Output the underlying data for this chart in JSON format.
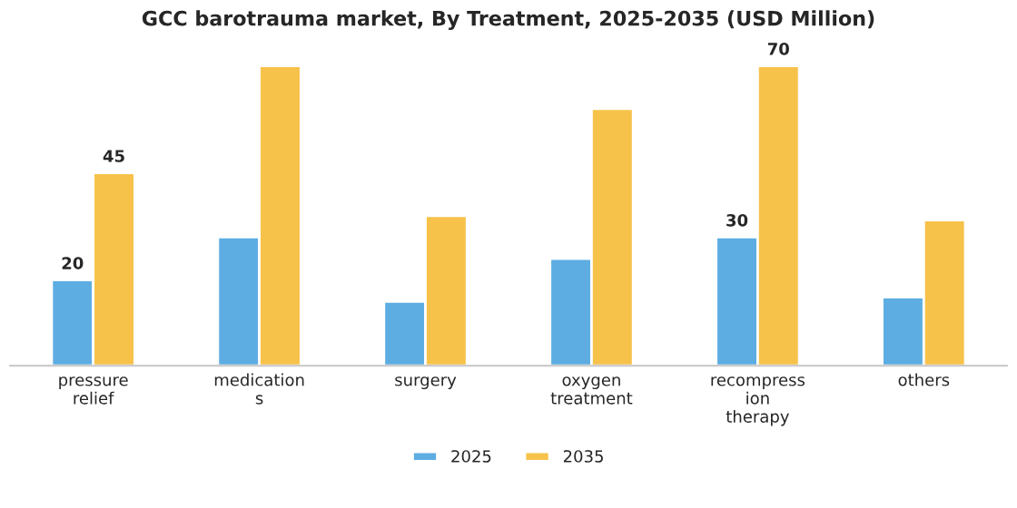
{
  "chart_data": {
    "type": "bar",
    "title": "GCC barotrauma market, By Treatment, 2025-2035 (USD Million)",
    "categories": [
      "pressure\nrelief",
      "medication\ns",
      "surgery",
      "oxygen\ntreatment",
      "recompress\nion\ntherapy",
      "others"
    ],
    "series": [
      {
        "name": "2025",
        "color": "#5dade2",
        "values": [
          20,
          30,
          15,
          25,
          30,
          16
        ],
        "value_labels": [
          "20",
          null,
          null,
          null,
          "30",
          null
        ]
      },
      {
        "name": "2035",
        "color": "#f7c24a",
        "values": [
          45,
          70,
          35,
          60,
          70,
          34
        ],
        "value_labels": [
          "45",
          null,
          null,
          null,
          "70",
          null
        ]
      }
    ],
    "tick_labels": "x",
    "legend": "bottom",
    "grid": false
  }
}
